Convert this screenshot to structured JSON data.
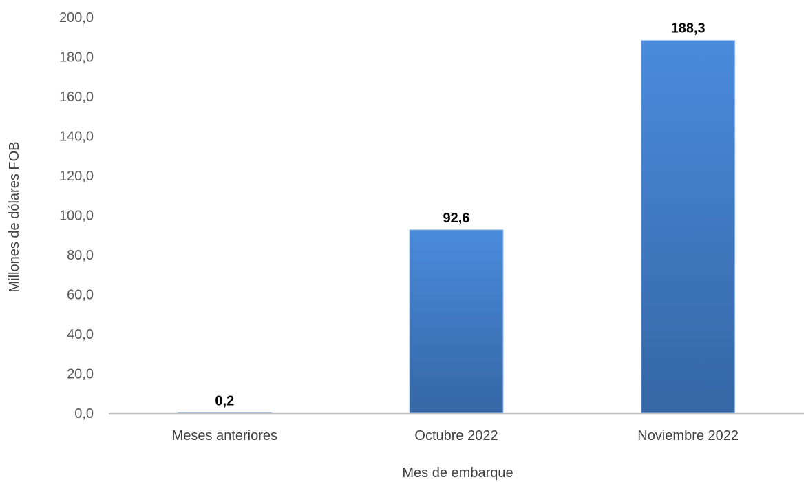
{
  "chart_data": {
    "type": "bar",
    "categories": [
      "Meses anteriores",
      "Octubre 2022",
      "Noviembre 2022"
    ],
    "values": [
      0.2,
      92.6,
      188.3
    ],
    "data_labels": [
      "0,2",
      "92,6",
      "188,3"
    ],
    "xlabel": "Mes de embarque",
    "ylabel": "Millones de dólares FOB",
    "ylim": [
      0,
      200
    ],
    "yticks": [
      0,
      20,
      40,
      60,
      80,
      100,
      120,
      140,
      160,
      180,
      200
    ],
    "ytick_labels": [
      "0,0",
      "20,0",
      "40,0",
      "60,0",
      "80,0",
      "100,0",
      "120,0",
      "140,0",
      "160,0",
      "180,0",
      "200,0"
    ],
    "grid": false,
    "legend": "none",
    "colors": {
      "bar_top": "#4a8bdc",
      "bar_bottom": "#3566a5",
      "axis": "#bfbfbf"
    }
  }
}
